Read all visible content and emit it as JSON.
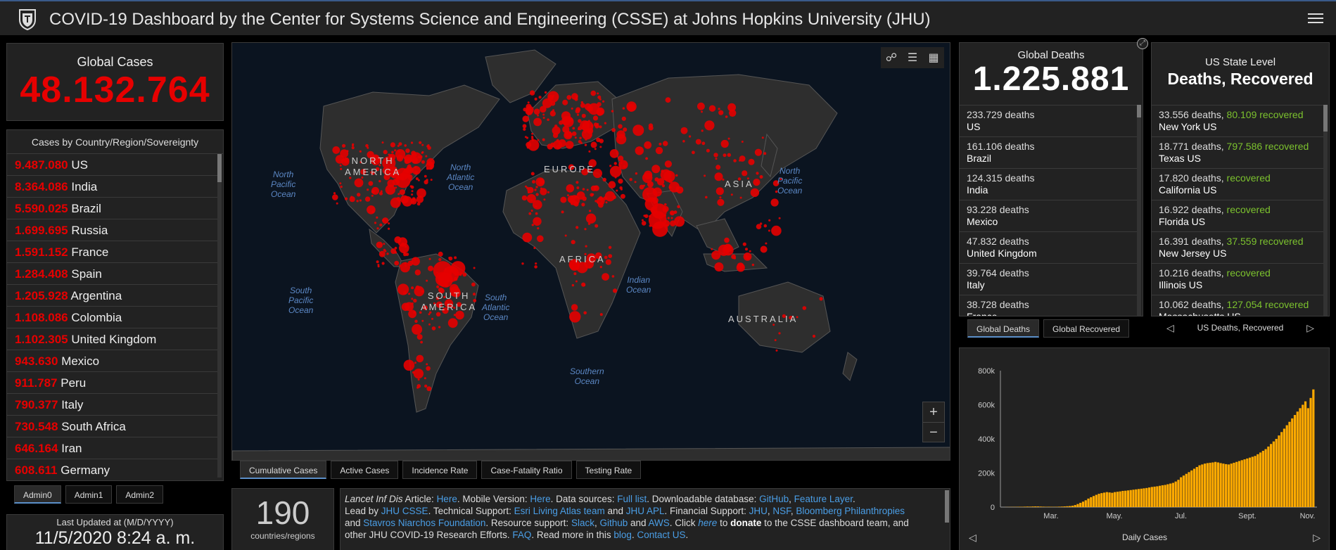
{
  "header": {
    "title": "COVID-19 Dashboard by the Center for Systems Science and Engineering (CSSE) at Johns Hopkins University (JHU)",
    "logo_icon": "jhu-shield-icon",
    "menu_icon": "hamburger-menu-icon"
  },
  "global_cases": {
    "title": "Global Cases",
    "value": "48.132.764"
  },
  "country_list": {
    "title": "Cases by Country/Region/Sovereignty",
    "items": [
      {
        "count": "9.487.080",
        "name": "US"
      },
      {
        "count": "8.364.086",
        "name": "India"
      },
      {
        "count": "5.590.025",
        "name": "Brazil"
      },
      {
        "count": "1.699.695",
        "name": "Russia"
      },
      {
        "count": "1.591.152",
        "name": "France"
      },
      {
        "count": "1.284.408",
        "name": "Spain"
      },
      {
        "count": "1.205.928",
        "name": "Argentina"
      },
      {
        "count": "1.108.086",
        "name": "Colombia"
      },
      {
        "count": "1.102.305",
        "name": "United Kingdom"
      },
      {
        "count": "943.630",
        "name": "Mexico"
      },
      {
        "count": "911.787",
        "name": "Peru"
      },
      {
        "count": "790.377",
        "name": "Italy"
      },
      {
        "count": "730.548",
        "name": "South Africa"
      },
      {
        "count": "646.164",
        "name": "Iran"
      },
      {
        "count": "608.611",
        "name": "Germany"
      }
    ]
  },
  "admin_tabs": [
    "Admin0",
    "Admin1",
    "Admin2"
  ],
  "last_updated": {
    "label": "Last Updated at (M/D/YYYY)",
    "value": "11/5/2020 8:24 a. m."
  },
  "map": {
    "oceans": [
      {
        "id": "north-pacific-west",
        "text": "North\nPacific\nOcean"
      },
      {
        "id": "north-atlantic",
        "text": "North\nAtlantic\nOcean"
      },
      {
        "id": "north-pacific-east",
        "text": "North\nPacific\nOcean"
      },
      {
        "id": "south-pacific",
        "text": "South\nPacific\nOcean"
      },
      {
        "id": "south-atlantic",
        "text": "South\nAtlantic\nOcean"
      },
      {
        "id": "indian",
        "text": "Indian\nOcean"
      },
      {
        "id": "southern",
        "text": "Southern\nOcean"
      }
    ],
    "continents": [
      {
        "id": "north-america",
        "text": "NORTH\nAMERICA"
      },
      {
        "id": "europe",
        "text": "EUROPE"
      },
      {
        "id": "asia",
        "text": "ASIA"
      },
      {
        "id": "africa",
        "text": "AFRICA"
      },
      {
        "id": "south-america",
        "text": "SOUTH\nAMERICA"
      },
      {
        "id": "australia",
        "text": "AUSTRALIA"
      }
    ],
    "tools": [
      "bookmark-icon",
      "legend-list-icon",
      "basemap-gallery-icon"
    ],
    "zoom_in": "+",
    "zoom_out": "−",
    "colors": {
      "ocean": "#0b1420",
      "land": "#2e2e2e",
      "bubble": "#e60000"
    }
  },
  "map_tabs": [
    "Cumulative Cases",
    "Active Cases",
    "Incidence Rate",
    "Case-Fatality Ratio",
    "Testing Rate"
  ],
  "countries_count": {
    "value": "190",
    "label": "countries/regions"
  },
  "info": {
    "l1a": "Lancet Inf Dis",
    "l1b": " Article: ",
    "l1c": "Here",
    "l1d": ". Mobile Version: ",
    "l1e": "Here",
    "l1f": ". Data sources: ",
    "l1g": "Full list",
    "l1h": ". Downloadable database: ",
    "l1i": "GitHub",
    "l1j": ", ",
    "l1k": "Feature Layer",
    "l1l": ".",
    "l2a": "Lead by ",
    "l2b": "JHU CSSE",
    "l2c": ". Technical Support: ",
    "l2d": "Esri Living Atlas team",
    "l2e": " and ",
    "l2f": "JHU APL",
    "l2g": ". Financial Support: ",
    "l2h": "JHU",
    "l2i": ", ",
    "l2j": "NSF",
    "l2k": ", ",
    "l2l": "Bloomberg Philanthropies",
    "l3a": "and ",
    "l3b": "Stavros Niarchos Foundation",
    "l3c": ". Resource support: ",
    "l3d": "Slack",
    "l3e": ", ",
    "l3f": "Github",
    "l3g": " and ",
    "l3h": "AWS",
    "l3i": ". Click ",
    "l3j": "here",
    "l3k": " to ",
    "l3l": "donate",
    "l3m": " to the CSSE dashboard team, and",
    "l4a": "other JHU COVID-19 Research Efforts. ",
    "l4b": "FAQ",
    "l4c": ". Read more in this ",
    "l4d": "blog",
    "l4e": ". ",
    "l4f": "Contact US",
    "l4g": "."
  },
  "global_deaths": {
    "title": "Global Deaths",
    "value": "1.225.881",
    "items": [
      {
        "count": "233.729 deaths",
        "name": "US"
      },
      {
        "count": "161.106 deaths",
        "name": "Brazil"
      },
      {
        "count": "124.315 deaths",
        "name": "India"
      },
      {
        "count": "93.228 deaths",
        "name": "Mexico"
      },
      {
        "count": "47.832 deaths",
        "name": "United Kingdom"
      },
      {
        "count": "39.764 deaths",
        "name": "Italy"
      },
      {
        "count": "38.728 deaths",
        "name": "France"
      }
    ]
  },
  "deaths_tabs": [
    "Global Deaths",
    "Global Recovered"
  ],
  "us_state": {
    "title": "US State Level",
    "subtitle": "Deaths, Recovered",
    "items": [
      {
        "deaths": "33.556 deaths, ",
        "recovered": "80.109 recovered",
        "name": "New York US"
      },
      {
        "deaths": "18.771 deaths, ",
        "recovered": "797.586 recovered",
        "name": "Texas US"
      },
      {
        "deaths": "17.820 deaths,  ",
        "recovered": "recovered",
        "name": "California US"
      },
      {
        "deaths": "16.922 deaths,  ",
        "recovered": "recovered",
        "name": "Florida US"
      },
      {
        "deaths": "16.391 deaths, ",
        "recovered": "37.559 recovered",
        "name": "New Jersey US"
      },
      {
        "deaths": "10.216 deaths,  ",
        "recovered": "recovered",
        "name": "Illinois US"
      },
      {
        "deaths": "10.062 deaths, ",
        "recovered": "127.054 recovered",
        "name": "Massachusetts US"
      }
    ],
    "pager_label": "US Deaths, Recovered"
  },
  "chart_data": {
    "type": "bar",
    "title": "",
    "xlabel": "Daily Cases",
    "ylabel": "",
    "ylim": [
      0,
      800000
    ],
    "y_ticks": [
      "0",
      "200k",
      "400k",
      "600k",
      "800k"
    ],
    "x_ticks": [
      "Mar.",
      "May.",
      "Jul.",
      "Sept.",
      "Nov."
    ],
    "color": "#ffaa00",
    "series": [
      {
        "values": [
          0,
          500,
          800,
          1000,
          1200,
          1500,
          2000,
          1800,
          2500,
          3000,
          2800,
          3500,
          4000,
          3800,
          3000,
          2500,
          2000,
          2200,
          1800,
          1500,
          2000,
          2500,
          3000,
          4000,
          5000,
          6000,
          8000,
          12000,
          18000,
          25000,
          32000,
          40000,
          50000,
          58000,
          65000,
          72000,
          78000,
          82000,
          85000,
          88000,
          86000,
          84000,
          88000,
          90000,
          92000,
          95000,
          96000,
          98000,
          100000,
          102000,
          104000,
          106000,
          108000,
          110000,
          112000,
          115000,
          118000,
          120000,
          122000,
          125000,
          128000,
          130000,
          134000,
          138000,
          142000,
          150000,
          160000,
          175000,
          185000,
          195000,
          205000,
          215000,
          225000,
          235000,
          245000,
          250000,
          255000,
          258000,
          260000,
          262000,
          265000,
          262000,
          258000,
          255000,
          252000,
          250000,
          255000,
          260000,
          265000,
          270000,
          275000,
          280000,
          285000,
          290000,
          295000,
          300000,
          310000,
          320000,
          330000,
          340000,
          355000,
          370000,
          385000,
          400000,
          420000,
          440000,
          460000,
          480000,
          500000,
          520000,
          540000,
          560000,
          580000,
          600000,
          620000,
          580000,
          640000,
          690000
        ]
      }
    ],
    "grid": false
  },
  "chart_pager_label": "Daily Cases"
}
